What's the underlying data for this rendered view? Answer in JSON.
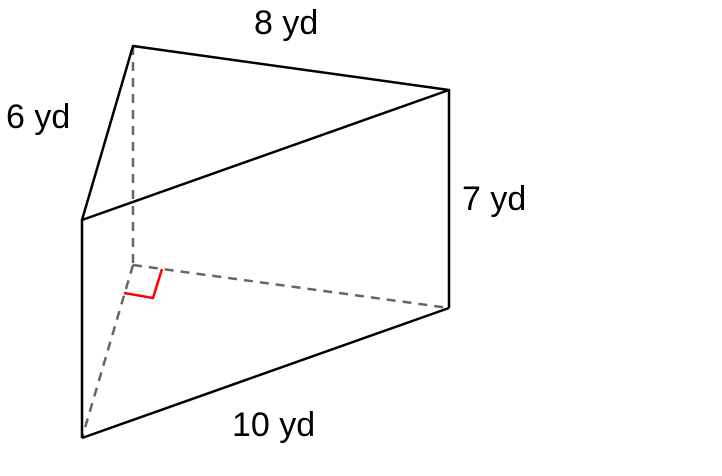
{
  "labels": {
    "top_edge": "8 yd",
    "left_edge": "6 yd",
    "height": "7 yd",
    "bottom_edge": "10 yd"
  },
  "colors": {
    "edge": "#000000",
    "hidden_edge": "#666666",
    "right_angle_marker": "#ff0000"
  }
}
